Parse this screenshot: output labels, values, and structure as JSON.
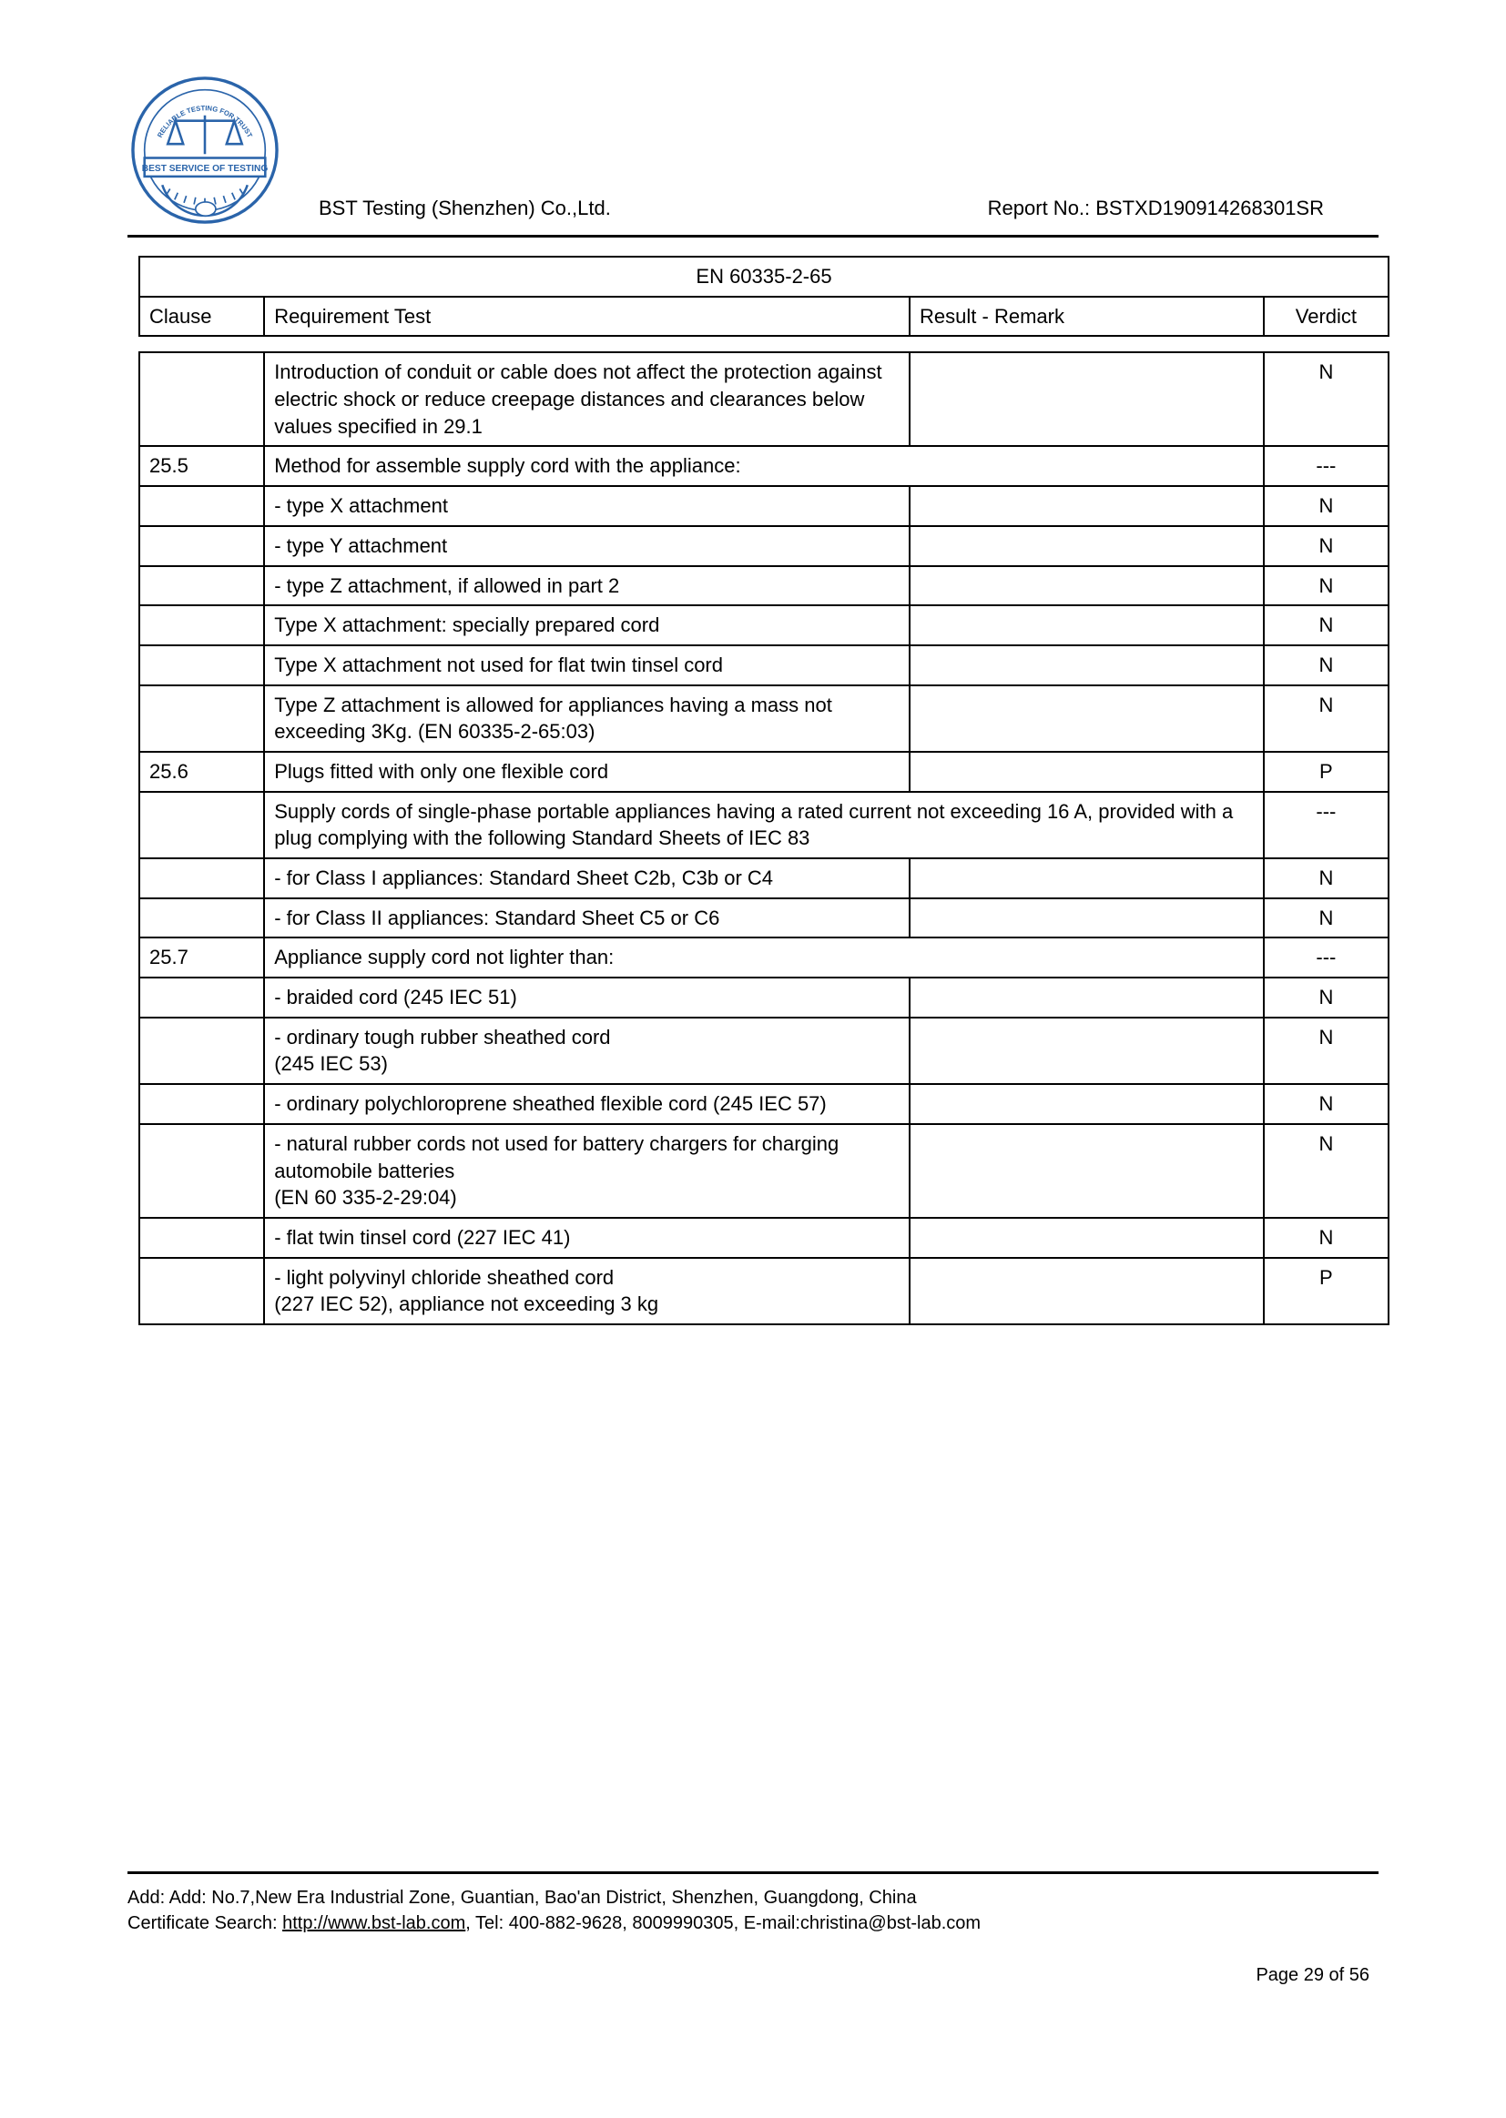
{
  "header": {
    "company": "BST Testing (Shenzhen) Co.,Ltd.",
    "report_label": "Report No.: BSTXD190914268301SR",
    "logo": {
      "ring_color": "#2a64aa",
      "banner_color": "#2a64aa",
      "banner_text": "BEST SERVICE OF TESTING",
      "top_arc_text": "RELIABLE TESTING FOR TRUST"
    }
  },
  "table": {
    "standard": "EN 60335-2-65",
    "headers": {
      "clause": "Clause",
      "requirement": "Requirement Test",
      "result": "Result - Remark",
      "verdict": "Verdict"
    },
    "rows": [
      {
        "clause": "",
        "req": "Introduction of conduit or cable does not affect the protection against electric shock or reduce creepage distances and clearances below values specified in 29.1",
        "result": "",
        "verdict": "N",
        "span": false
      },
      {
        "clause": "25.5",
        "req": "Method for assemble supply cord with the appliance:",
        "result": "",
        "verdict": "---",
        "span": true
      },
      {
        "clause": "",
        "req": "- type X attachment",
        "result": "",
        "verdict": "N",
        "span": false
      },
      {
        "clause": "",
        "req": "- type Y attachment",
        "result": "",
        "verdict": "N",
        "span": false
      },
      {
        "clause": "",
        "req": "- type Z attachment, if allowed in part 2",
        "result": "",
        "verdict": "N",
        "span": false
      },
      {
        "clause": "",
        "req": "Type X attachment: specially prepared cord",
        "result": "",
        "verdict": "N",
        "span": false
      },
      {
        "clause": "",
        "req": "Type X attachment not used for flat twin tinsel cord",
        "result": "",
        "verdict": "N",
        "span": false
      },
      {
        "clause": "",
        "req": "Type Z attachment is allowed for appliances having a mass not exceeding 3Kg. (EN 60335-2-65:03)",
        "result": "",
        "verdict": "N",
        "span": false
      },
      {
        "clause": "25.6",
        "req": "Plugs fitted with only one flexible cord",
        "result": "",
        "verdict": "P",
        "span": false
      },
      {
        "clause": "",
        "req": "Supply cords of single-phase portable appliances having a rated current not exceeding 16 A, provided with a plug complying with the following Standard Sheets of IEC 83",
        "result": "",
        "verdict": "---",
        "span": true
      },
      {
        "clause": "",
        "req": "- for Class I appliances: Standard Sheet C2b, C3b or C4",
        "result": "",
        "verdict": "N",
        "span": false
      },
      {
        "clause": "",
        "req": "- for Class II appliances: Standard Sheet C5 or C6",
        "result": "",
        "verdict": "N",
        "span": false
      },
      {
        "clause": "25.7",
        "req": "Appliance supply cord not lighter than:",
        "result": "",
        "verdict": "---",
        "span": true
      },
      {
        "clause": "",
        "req": "- braided cord (245 IEC 51)",
        "result": "",
        "verdict": "N",
        "span": false
      },
      {
        "clause": "",
        "req": "- ordinary tough rubber sheathed cord\n(245 IEC 53)",
        "result": "",
        "verdict": "N",
        "span": false
      },
      {
        "clause": "",
        "req": "- ordinary polychloroprene sheathed flexible cord (245 IEC 57)",
        "result": "",
        "verdict": "N",
        "span": false
      },
      {
        "clause": "",
        "req": "- natural rubber cords not used for battery chargers for charging automobile batteries\n(EN 60 335-2-29:04)",
        "result": "",
        "verdict": "N",
        "span": false
      },
      {
        "clause": "",
        "req": "- flat twin tinsel cord (227 IEC 41)",
        "result": "",
        "verdict": "N",
        "span": false
      },
      {
        "clause": "",
        "req": "- light polyvinyl chloride sheathed cord\n(227 IEC 52), appliance not exceeding 3 kg",
        "result": "",
        "verdict": "P",
        "span": false
      }
    ]
  },
  "footer": {
    "line1": "Add: Add: No.7,New Era Industrial Zone, Guantian, Bao'an District, Shenzhen, Guangdong, China",
    "line2_pre": "Certificate Search: ",
    "line2_link": "http://www.bst-lab.com",
    "line2_post": ", Tel: 400-882-9628, 8009990305, E-mail:christina@bst-lab.com",
    "page": "Page 29 of 56"
  }
}
